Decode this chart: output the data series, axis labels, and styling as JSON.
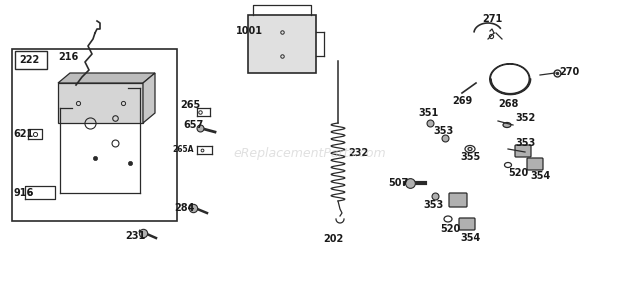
{
  "bg_color": "#ffffff",
  "line_color": "#2a2a2a",
  "label_color": "#1a1a1a",
  "label_fontsize": 6.5,
  "bold_fontsize": 7.0,
  "watermark": "eReplacementParts.com",
  "watermark_color": "#cccccc",
  "watermark_fontsize": 9,
  "figsize": [
    6.2,
    3.01
  ],
  "dpi": 100
}
